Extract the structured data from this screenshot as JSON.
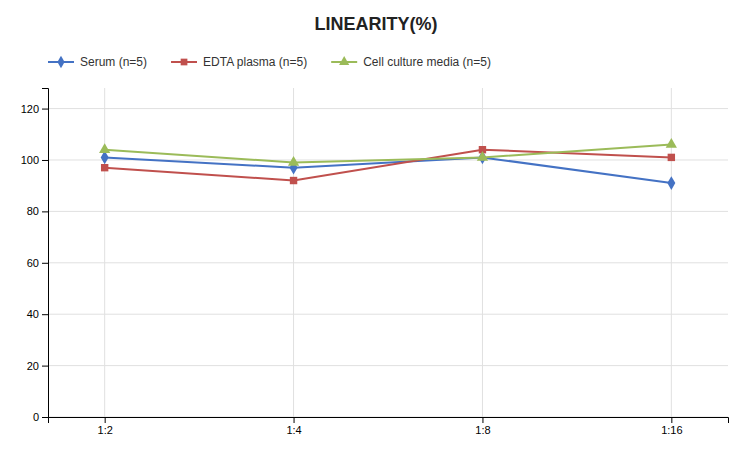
{
  "chart_data": {
    "type": "line",
    "title": "LINEARITY(%)",
    "categories": [
      "1:2",
      "1:4",
      "1:8",
      "1:16"
    ],
    "series": [
      {
        "name": "Serum (n=5)",
        "color": "#4472C4",
        "marker": "diamond",
        "values": [
          101,
          97,
          101,
          91
        ]
      },
      {
        "name": "EDTA plasma (n=5)",
        "color": "#C0504D",
        "marker": "square",
        "values": [
          97,
          92,
          104,
          101
        ]
      },
      {
        "name": "Cell culture media (n=5)",
        "color": "#9BBB59",
        "marker": "triangle",
        "values": [
          104,
          99,
          101,
          106
        ]
      }
    ],
    "ylim": [
      0,
      128
    ],
    "yticks": [
      0,
      20,
      40,
      60,
      80,
      100,
      120
    ],
    "grid": true,
    "legend": "top"
  }
}
